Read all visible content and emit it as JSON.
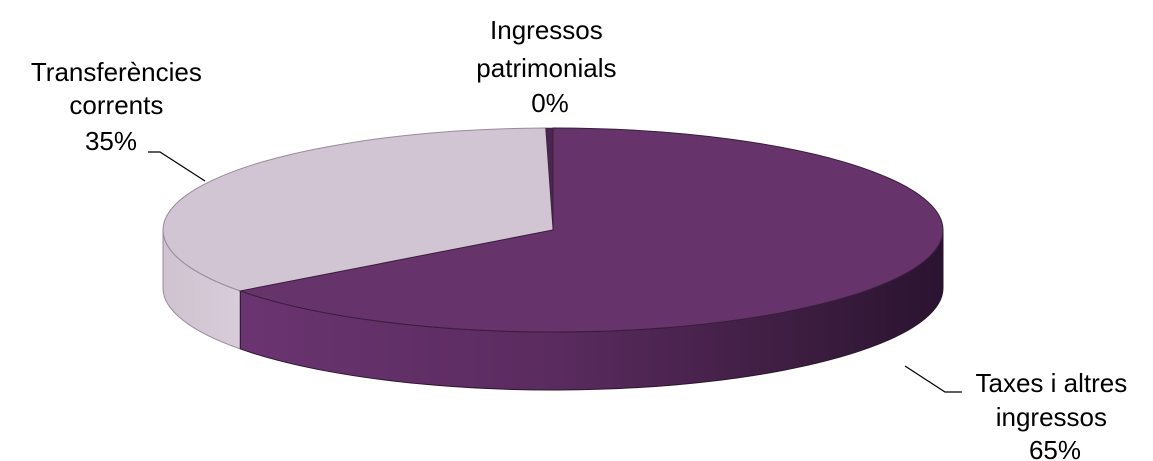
{
  "chart_data": {
    "type": "pie",
    "style": "3d",
    "title": "",
    "slices": [
      {
        "label_lines": [
          "Taxes i altres",
          "ingressos"
        ],
        "percent_label": "65%",
        "value": 65,
        "color": "#66336b"
      },
      {
        "label_lines": [
          "Transferències",
          "corrents"
        ],
        "percent_label": "35%",
        "value": 35,
        "color": "#d2c5d3"
      },
      {
        "label_lines": [
          "Ingressos",
          "patrimonials"
        ],
        "percent_label": "0%",
        "value": 0.3,
        "color": "#4a2550"
      }
    ]
  }
}
